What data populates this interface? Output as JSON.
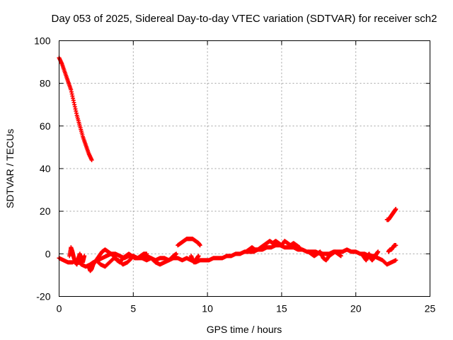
{
  "chart_data": {
    "type": "scatter",
    "title": "Day 053 of 2025, Sidereal Day-to-day VTEC variation (SDTVAR) for receiver sch2",
    "xlabel": "GPS time / hours",
    "ylabel": "SDTVAR / TECUs",
    "xlim": [
      0,
      25
    ],
    "ylim": [
      -20,
      100
    ],
    "xticks": [
      "0",
      "5",
      "10",
      "15",
      "20",
      "25"
    ],
    "yticks": [
      "-20",
      "0",
      "20",
      "40",
      "60",
      "80",
      "100"
    ],
    "grid": true,
    "marker": "plus",
    "series": [
      {
        "name": "sdtvar",
        "color": "#ff0000",
        "segments": [
          {
            "x": [
              0.0,
              0.2,
              0.4,
              0.6,
              0.8,
              1.0,
              1.2,
              1.4,
              1.6,
              1.8,
              2.0,
              2.2
            ],
            "y": [
              92,
              89,
              85,
              81,
              77,
              71,
              65,
              60,
              55,
              51,
              47,
              44
            ]
          },
          {
            "x": [
              0.0,
              0.3,
              0.6,
              0.9,
              1.2,
              1.5,
              1.8,
              2.1,
              2.3,
              2.6,
              2.9,
              3.2,
              3.5,
              3.8,
              4.1,
              4.4,
              4.7,
              5.0,
              5.3,
              5.6,
              5.9,
              6.2,
              6.5,
              6.8,
              7.1,
              7.4,
              7.7,
              8.0,
              8.3,
              8.6,
              8.9,
              9.2,
              9.5,
              9.8,
              10.1,
              10.4,
              10.7,
              11.0,
              11.3,
              11.6,
              11.9,
              12.2,
              12.5,
              12.8,
              13.1,
              13.4,
              13.7,
              14.0,
              14.3,
              14.6,
              14.9,
              15.2,
              15.5,
              15.8,
              16.1,
              16.4,
              16.7,
              17.0,
              17.3,
              17.6,
              17.9,
              18.2,
              18.5,
              18.8,
              19.1,
              19.4,
              19.7,
              20.0,
              20.3,
              20.6,
              20.9,
              21.2,
              21.5,
              21.8,
              22.1,
              22.4,
              22.7
            ],
            "y": [
              -2,
              -3,
              -4,
              -4,
              -3,
              -5,
              -6,
              -5,
              -4,
              -3,
              -2,
              -1,
              0,
              0,
              -1,
              -2,
              -1,
              -1,
              -2,
              -2,
              -1,
              -2,
              -3,
              -2,
              -2,
              -3,
              -2,
              -2,
              -3,
              -2,
              -3,
              -4,
              -3,
              -3,
              -3,
              -2,
              -2,
              -2,
              -1,
              -1,
              0,
              0,
              1,
              1,
              1,
              2,
              2,
              3,
              3,
              4,
              4,
              3,
              3,
              3,
              2,
              2,
              1,
              1,
              1,
              0,
              0,
              0,
              1,
              1,
              1,
              2,
              1,
              1,
              0,
              0,
              -1,
              -1,
              -2,
              -3,
              -5,
              -4,
              -3
            ]
          },
          {
            "x": [
              0.7,
              0.8,
              0.9,
              1.0,
              1.1,
              1.2,
              1.3,
              1.4,
              1.5,
              1.6,
              1.7
            ],
            "y": [
              -1,
              3,
              1,
              -2,
              -4,
              -5,
              -2,
              0,
              -3,
              -4,
              -1
            ]
          },
          {
            "x": [
              2.0,
              2.1,
              2.2,
              2.3,
              2.5,
              2.7,
              2.9,
              3.1,
              3.3,
              3.5,
              3.7,
              3.9,
              4.1,
              4.3,
              4.5,
              4.7,
              4.9,
              5.1,
              5.3,
              5.5,
              5.7,
              5.9
            ],
            "y": [
              -6,
              -8,
              -7,
              -5,
              -3,
              -1,
              1,
              2,
              1,
              0,
              -1,
              -3,
              -4,
              -2,
              -1,
              0,
              -1,
              -2,
              -2,
              -1,
              0,
              0
            ]
          },
          {
            "x": [
              2.5,
              2.8,
              3.1,
              3.4,
              3.7,
              4.0,
              4.3,
              4.6,
              4.9
            ],
            "y": [
              -3,
              -5,
              -6,
              -4,
              -2,
              -3,
              -5,
              -4,
              -2
            ]
          },
          {
            "x": [
              5.6,
              5.9,
              6.2,
              6.5,
              6.8,
              7.1,
              7.4,
              7.7,
              7.9
            ],
            "y": [
              -2,
              -3,
              -2,
              -4,
              -5,
              -4,
              -3,
              -1,
              0
            ]
          },
          {
            "x": [
              8.0,
              8.2,
              8.4,
              8.6,
              8.8,
              9.0,
              9.2,
              9.4,
              9.5
            ],
            "y": [
              4,
              5,
              6,
              7,
              7,
              7,
              6,
              5,
              4
            ]
          },
          {
            "x": [
              8.9,
              9.0,
              9.1,
              9.2,
              9.3,
              9.4
            ],
            "y": [
              -1,
              -3,
              -4,
              -3,
              -2,
              -1
            ]
          },
          {
            "x": [
              12.6,
              12.8,
              13.0,
              13.2,
              13.4,
              13.6,
              13.8,
              14.0,
              14.2,
              14.4,
              14.6,
              14.8,
              15.0,
              15.2,
              15.4,
              15.6,
              15.8,
              16.0,
              16.2
            ],
            "y": [
              1,
              2,
              3,
              2,
              2,
              3,
              4,
              5,
              6,
              5,
              6,
              5,
              4,
              6,
              5,
              4,
              5,
              4,
              3
            ]
          },
          {
            "x": [
              16.8,
              17.0,
              17.2,
              17.4,
              17.6,
              17.8,
              18.0,
              18.2,
              18.4,
              18.6,
              18.8,
              19.0
            ],
            "y": [
              1,
              0,
              -1,
              0,
              1,
              -2,
              -3,
              -1,
              0,
              1,
              0,
              -1
            ]
          },
          {
            "x": [
              20.5,
              20.6,
              20.7,
              20.8,
              20.9,
              21.0,
              21.1,
              21.2,
              21.3,
              21.4,
              21.5
            ],
            "y": [
              -1,
              -2,
              -3,
              -1,
              0,
              -2,
              -3,
              -2,
              -1,
              0,
              1
            ]
          },
          {
            "x": [
              22.2,
              22.3,
              22.4,
              22.5,
              22.6,
              22.7
            ],
            "y": [
              1,
              2,
              2,
              3,
              4,
              4
            ]
          },
          {
            "x": [
              22.1,
              22.2,
              22.3,
              22.4,
              22.5,
              22.6,
              22.7
            ],
            "y": [
              16,
              16,
              17,
              18,
              19,
              20,
              21
            ]
          }
        ]
      }
    ]
  }
}
